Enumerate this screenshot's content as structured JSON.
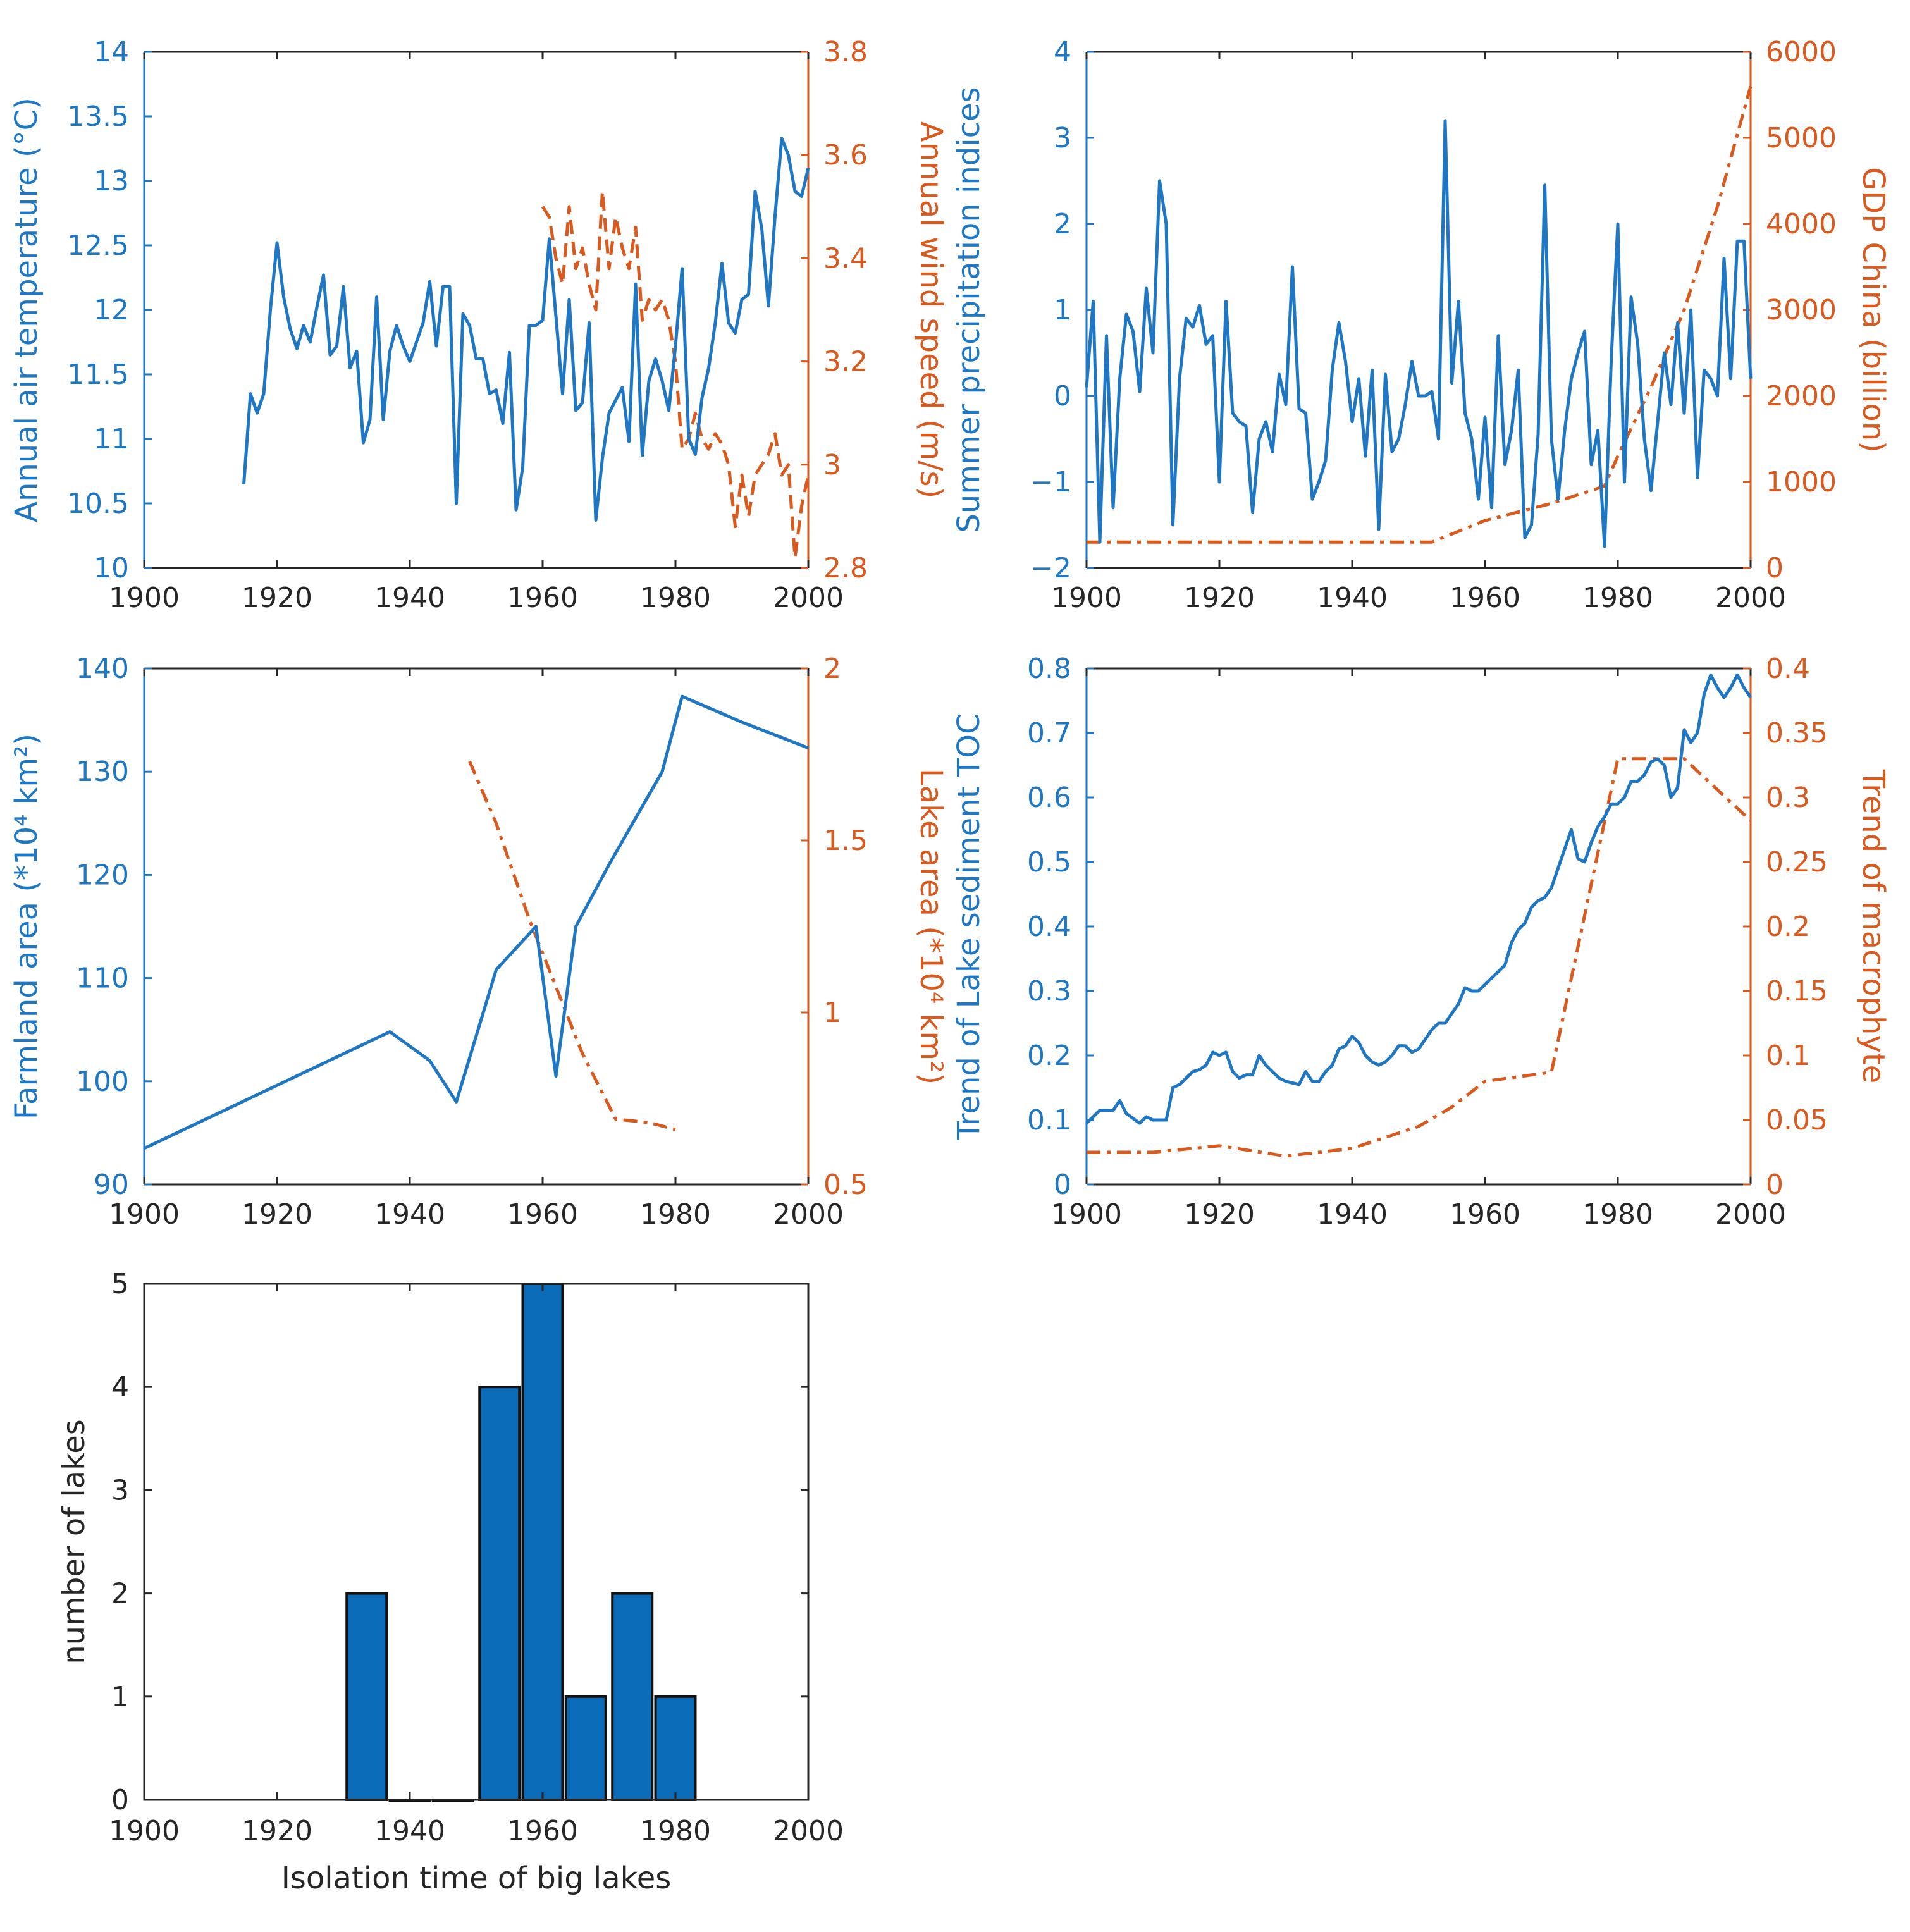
{
  "figure": {
    "colors": {
      "blue": "#1f77c4",
      "orange": "#d95a1f",
      "bar_fill": "#0a6bb8",
      "axis": "#262626"
    }
  },
  "chart_data": [
    {
      "id": "temp_wind",
      "type": "line",
      "xlim": [
        1900,
        2000
      ],
      "xticks": [
        "1900",
        "1920",
        "1940",
        "1960",
        "1980",
        "2000"
      ],
      "left": {
        "ylabel": "Annual air temperature (°C)",
        "ylim": [
          10,
          14
        ],
        "yticks": [
          "10",
          "10.5",
          "11",
          "11.5",
          "12",
          "12.5",
          "13",
          "13.5",
          "14"
        ],
        "series": {
          "name": "Annual air temperature",
          "style": "solid",
          "x": [
            1915,
            1916,
            1917,
            1918,
            1919,
            1920,
            1921,
            1922,
            1923,
            1924,
            1925,
            1926,
            1927,
            1928,
            1929,
            1930,
            1931,
            1932,
            1933,
            1934,
            1935,
            1936,
            1937,
            1938,
            1939,
            1940,
            1941,
            1942,
            1943,
            1944,
            1945,
            1946,
            1947,
            1948,
            1949,
            1950,
            1951,
            1952,
            1953,
            1954,
            1955,
            1956,
            1957,
            1958,
            1959,
            1960,
            1961,
            1962,
            1963,
            1964,
            1965,
            1966,
            1967,
            1968,
            1969,
            1970,
            1971,
            1972,
            1973,
            1974,
            1975,
            1976,
            1977,
            1978,
            1979,
            1980,
            1981,
            1982,
            1983,
            1984,
            1985,
            1986,
            1987,
            1988,
            1989,
            1990,
            1991,
            1992,
            1993,
            1994,
            1995,
            1996,
            1997,
            1998,
            1999,
            2000
          ],
          "y": [
            10.65,
            11.35,
            11.2,
            11.35,
            12.0,
            12.52,
            12.1,
            11.85,
            11.7,
            11.88,
            11.75,
            12.02,
            12.27,
            11.65,
            11.72,
            12.18,
            11.55,
            11.68,
            10.97,
            11.15,
            12.1,
            11.15,
            11.68,
            11.88,
            11.72,
            11.6,
            11.75,
            11.9,
            12.22,
            11.72,
            12.18,
            12.18,
            10.5,
            11.97,
            11.88,
            11.62,
            11.62,
            11.35,
            11.38,
            11.12,
            11.67,
            10.45,
            10.78,
            11.88,
            11.88,
            11.92,
            12.55,
            11.95,
            11.35,
            12.08,
            11.22,
            11.28,
            11.9,
            10.37,
            10.85,
            11.2,
            11.3,
            11.4,
            10.98,
            12.2,
            10.87,
            11.45,
            11.62,
            11.45,
            11.22,
            11.72,
            12.32,
            11.0,
            10.88,
            11.32,
            11.55,
            11.9,
            12.36,
            11.9,
            11.82,
            12.08,
            12.12,
            12.92,
            12.63,
            12.03,
            12.73,
            13.33,
            13.2,
            12.92,
            12.88,
            13.1
          ]
        }
      },
      "right": {
        "ylabel": "Annual wind speed (m/s)",
        "ylim": [
          2.8,
          3.8
        ],
        "yticks": [
          "2.8",
          "3",
          "3.2",
          "3.4",
          "3.6",
          "3.8"
        ],
        "series": {
          "name": "Annual wind speed",
          "style": "dashed",
          "x": [
            1960,
            1961,
            1962,
            1963,
            1964,
            1965,
            1966,
            1967,
            1968,
            1969,
            1970,
            1971,
            1972,
            1973,
            1974,
            1975,
            1976,
            1977,
            1978,
            1979,
            1980,
            1981,
            1982,
            1983,
            1984,
            1985,
            1986,
            1987,
            1988,
            1989,
            1990,
            1991,
            1992,
            1993,
            1994,
            1995,
            1996,
            1997,
            1998,
            1999,
            2000
          ],
          "y": [
            3.5,
            3.48,
            3.4,
            3.35,
            3.5,
            3.38,
            3.42,
            3.35,
            3.3,
            3.53,
            3.38,
            3.48,
            3.42,
            3.38,
            3.46,
            3.28,
            3.32,
            3.3,
            3.32,
            3.28,
            3.2,
            3.03,
            3.05,
            3.1,
            3.05,
            3.03,
            3.06,
            3.04,
            3.0,
            2.88,
            2.98,
            2.9,
            2.98,
            3.0,
            3.02,
            3.06,
            2.98,
            3.0,
            2.82,
            2.92,
            2.98
          ]
        }
      }
    },
    {
      "id": "precip_gdp",
      "type": "line",
      "xlim": [
        1900,
        2000
      ],
      "xticks": [
        "1900",
        "1920",
        "1940",
        "1960",
        "1980",
        "2000"
      ],
      "left": {
        "ylabel": "Summer precipitation indices",
        "ylim": [
          -2,
          4
        ],
        "yticks": [
          "−2",
          "−1",
          "0",
          "1",
          "2",
          "3",
          "4"
        ],
        "series": {
          "name": "Summer precipitation indices",
          "style": "solid",
          "x": [
            1900,
            1901,
            1902,
            1903,
            1904,
            1905,
            1906,
            1907,
            1908,
            1909,
            1910,
            1911,
            1912,
            1913,
            1914,
            1915,
            1916,
            1917,
            1918,
            1919,
            1920,
            1921,
            1922,
            1923,
            1924,
            1925,
            1926,
            1927,
            1928,
            1929,
            1930,
            1931,
            1932,
            1933,
            1934,
            1935,
            1936,
            1937,
            1938,
            1939,
            1940,
            1941,
            1942,
            1943,
            1944,
            1945,
            1946,
            1947,
            1948,
            1949,
            1950,
            1951,
            1952,
            1953,
            1954,
            1955,
            1956,
            1957,
            1958,
            1959,
            1960,
            1961,
            1962,
            1963,
            1964,
            1965,
            1966,
            1967,
            1968,
            1969,
            1970,
            1971,
            1972,
            1973,
            1974,
            1975,
            1976,
            1977,
            1978,
            1979,
            1980,
            1981,
            1982,
            1983,
            1984,
            1985,
            1986,
            1987,
            1988,
            1989,
            1990,
            1991,
            1992,
            1993,
            1994,
            1995,
            1996,
            1997,
            1998,
            1999,
            2000
          ],
          "y": [
            0.1,
            1.1,
            -1.7,
            0.7,
            -1.3,
            0.2,
            0.95,
            0.75,
            0.05,
            1.25,
            0.5,
            2.5,
            2.0,
            -1.5,
            0.2,
            0.9,
            0.8,
            1.05,
            0.6,
            0.7,
            -1.0,
            1.1,
            -0.2,
            -0.3,
            -0.35,
            -1.35,
            -0.5,
            -0.3,
            -0.65,
            0.25,
            -0.1,
            1.5,
            -0.15,
            -0.2,
            -1.2,
            -1.0,
            -0.75,
            0.3,
            0.85,
            0.4,
            -0.3,
            0.2,
            -0.7,
            0.3,
            -1.55,
            0.25,
            -0.65,
            -0.5,
            -0.1,
            0.4,
            0.0,
            0.0,
            0.05,
            -0.5,
            3.2,
            0.15,
            1.1,
            -0.2,
            -0.5,
            -1.2,
            -0.25,
            -1.3,
            0.7,
            -0.8,
            -0.4,
            0.3,
            -1.65,
            -1.5,
            -0.45,
            2.45,
            -0.5,
            -1.2,
            -0.4,
            0.2,
            0.5,
            0.75,
            -0.8,
            -0.4,
            -1.75,
            0.4,
            2.0,
            -1.0,
            1.15,
            0.6,
            -0.5,
            -1.1,
            -0.3,
            0.5,
            -0.1,
            0.85,
            -0.2,
            1.0,
            -0.95,
            0.3,
            0.2,
            0.0,
            1.6,
            0.2,
            1.8,
            1.8,
            0.2
          ]
        }
      },
      "right": {
        "ylabel": "GDP China (billion)",
        "ylim": [
          0,
          6000
        ],
        "yticks": [
          "0",
          "1000",
          "2000",
          "3000",
          "4000",
          "5000",
          "6000"
        ],
        "series": {
          "name": "GDP China",
          "style": "dashdot",
          "x": [
            1900,
            1952,
            1960,
            1970,
            1978,
            1980,
            1985,
            1990,
            1995,
            2000
          ],
          "y": [
            300,
            300,
            550,
            750,
            950,
            1300,
            2100,
            3000,
            4200,
            5600
          ]
        }
      }
    },
    {
      "id": "farmland_lake",
      "type": "line",
      "xlim": [
        1900,
        2000
      ],
      "xticks": [
        "1900",
        "1920",
        "1940",
        "1960",
        "1980",
        "2000"
      ],
      "left": {
        "ylabel": "Farmland area (*10⁴ km²)",
        "ylim": [
          90,
          140
        ],
        "yticks": [
          "90",
          "100",
          "110",
          "120",
          "130",
          "140"
        ],
        "series": {
          "name": "Farmland area",
          "style": "solid",
          "x": [
            1900,
            1937,
            1943,
            1947,
            1953,
            1959,
            1962,
            1965,
            1970,
            1978,
            1981,
            1990,
            2000
          ],
          "y": [
            93.5,
            104.8,
            102.0,
            98.0,
            110.8,
            115.0,
            100.5,
            115.0,
            121.0,
            130.0,
            137.3,
            134.8,
            132.3
          ]
        }
      },
      "right": {
        "ylabel": "Lake area (*10⁴ km²)",
        "ylim": [
          0.5,
          2
        ],
        "yticks": [
          "0.5",
          "1",
          "1.5",
          "2"
        ],
        "series": {
          "name": "Lake area",
          "style": "dashdot",
          "x": [
            1949,
            1953,
            1958,
            1966,
            1971,
            1976,
            1980
          ],
          "y": [
            1.73,
            1.55,
            1.27,
            0.88,
            0.69,
            0.68,
            0.66
          ]
        }
      }
    },
    {
      "id": "toc_macrophyte",
      "type": "line",
      "xlim": [
        1900,
        2000
      ],
      "xticks": [
        "1900",
        "1920",
        "1940",
        "1960",
        "1980",
        "2000"
      ],
      "left": {
        "ylabel": "Trend of Lake sediment TOC",
        "ylim": [
          0,
          0.8
        ],
        "yticks": [
          "0",
          "0.1",
          "0.2",
          "0.3",
          "0.4",
          "0.5",
          "0.6",
          "0.7",
          "0.8"
        ],
        "series": {
          "name": "Trend of Lake sediment TOC",
          "style": "solid",
          "x": [
            1900,
            1902,
            1904,
            1905,
            1906,
            1908,
            1909,
            1910,
            1911,
            1912,
            1913,
            1914,
            1915,
            1916,
            1917,
            1918,
            1919,
            1920,
            1921,
            1922,
            1923,
            1924,
            1925,
            1926,
            1927,
            1928,
            1929,
            1930,
            1932,
            1933,
            1934,
            1935,
            1936,
            1937,
            1938,
            1939,
            1940,
            1941,
            1942,
            1943,
            1944,
            1945,
            1946,
            1947,
            1948,
            1949,
            1950,
            1951,
            1952,
            1953,
            1954,
            1955,
            1956,
            1957,
            1958,
            1959,
            1960,
            1961,
            1962,
            1963,
            1964,
            1965,
            1966,
            1967,
            1968,
            1969,
            1970,
            1971,
            1972,
            1973,
            1974,
            1975,
            1976,
            1977,
            1978,
            1979,
            1980,
            1981,
            1982,
            1983,
            1984,
            1985,
            1986,
            1987,
            1988,
            1989,
            1990,
            1991,
            1992,
            1993,
            1994,
            1995,
            1996,
            1997,
            1998,
            1999,
            2000
          ],
          "y": [
            0.095,
            0.115,
            0.115,
            0.13,
            0.11,
            0.095,
            0.105,
            0.1,
            0.1,
            0.1,
            0.15,
            0.155,
            0.165,
            0.175,
            0.178,
            0.185,
            0.205,
            0.2,
            0.205,
            0.175,
            0.165,
            0.17,
            0.17,
            0.2,
            0.185,
            0.175,
            0.165,
            0.16,
            0.155,
            0.175,
            0.16,
            0.16,
            0.175,
            0.185,
            0.21,
            0.215,
            0.23,
            0.22,
            0.2,
            0.19,
            0.185,
            0.19,
            0.2,
            0.215,
            0.215,
            0.205,
            0.21,
            0.225,
            0.24,
            0.25,
            0.25,
            0.265,
            0.28,
            0.305,
            0.3,
            0.3,
            0.31,
            0.32,
            0.33,
            0.34,
            0.375,
            0.395,
            0.405,
            0.43,
            0.44,
            0.445,
            0.46,
            0.49,
            0.52,
            0.55,
            0.505,
            0.5,
            0.53,
            0.555,
            0.57,
            0.59,
            0.59,
            0.6,
            0.625,
            0.625,
            0.635,
            0.655,
            0.66,
            0.65,
            0.6,
            0.615,
            0.705,
            0.685,
            0.7,
            0.76,
            0.79,
            0.77,
            0.755,
            0.77,
            0.79,
            0.77,
            0.755
          ],
          "x_note": "series ends at 2000"
        }
      },
      "right": {
        "ylabel": "Trend of macrophyte",
        "ylim": [
          0,
          0.4
        ],
        "yticks": [
          "0",
          "0.05",
          "0.1",
          "0.15",
          "0.2",
          "0.25",
          "0.3",
          "0.35",
          "0.4"
        ],
        "series": {
          "name": "Trend of macrophyte",
          "style": "dashdot",
          "x": [
            1900,
            1910,
            1920,
            1930,
            1940,
            1950,
            1955,
            1960,
            1970,
            1980,
            1990,
            2000
          ],
          "y": [
            0.025,
            0.025,
            0.03,
            0.022,
            0.028,
            0.045,
            0.06,
            0.08,
            0.087,
            0.33,
            0.33,
            0.282
          ]
        }
      }
    },
    {
      "id": "isolation_histogram",
      "type": "bar",
      "title": "",
      "xlabel": "Isolation time of big lakes",
      "ylabel": "number of lakes",
      "xlim": [
        1900,
        2000
      ],
      "ylim": [
        0,
        5
      ],
      "xticks": [
        "1900",
        "1920",
        "1940",
        "1960",
        "1980",
        "2000"
      ],
      "yticks": [
        "0",
        "1",
        "2",
        "3",
        "4",
        "5"
      ],
      "bin_width": 5,
      "bin_centers": [
        1933.5,
        1940,
        1946.5,
        1953.5,
        1960,
        1966.5,
        1973.5,
        1980
      ],
      "values": [
        2,
        0,
        0,
        4,
        5,
        1,
        2,
        1
      ]
    }
  ]
}
